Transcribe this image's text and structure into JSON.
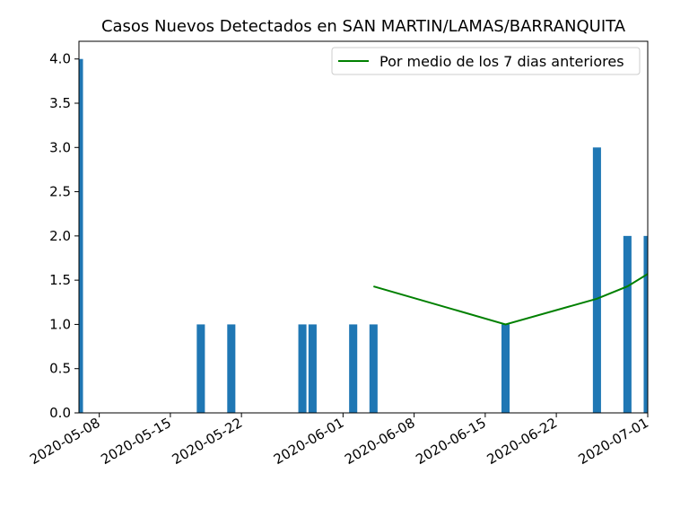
{
  "chart_data": {
    "type": "bar",
    "title": "Casos Nuevos Detectados en SAN MARTIN/LAMAS/BARRANQUITA",
    "xlabel": "",
    "ylabel": "",
    "ylim": [
      0,
      4.2
    ],
    "xlim": [
      "2020-05-06",
      "2020-07-01"
    ],
    "y_ticks": [
      "0.0",
      "0.5",
      "1.0",
      "1.5",
      "2.0",
      "2.5",
      "3.0",
      "3.5",
      "4.0"
    ],
    "x_ticks": [
      "2020-05-08",
      "2020-05-15",
      "2020-05-22",
      "2020-06-01",
      "2020-06-08",
      "2020-06-15",
      "2020-06-22",
      "2020-07-01"
    ],
    "bars": {
      "color": "#1f77b4",
      "x": [
        "2020-05-06",
        "2020-05-18",
        "2020-05-21",
        "2020-05-28",
        "2020-05-29",
        "2020-06-02",
        "2020-06-04",
        "2020-06-17",
        "2020-06-26",
        "2020-06-29",
        "2020-07-01"
      ],
      "values": [
        4,
        1,
        1,
        1,
        1,
        1,
        1,
        1,
        3,
        2,
        2
      ]
    },
    "series": [
      {
        "name": "Por medio de los 7 dias anteriores",
        "type": "line",
        "color": "#008000",
        "x": [
          "2020-06-04",
          "2020-06-17",
          "2020-06-26",
          "2020-06-29",
          "2020-07-01"
        ],
        "values": [
          1.43,
          1.0,
          1.29,
          1.43,
          1.57
        ]
      }
    ],
    "legend": {
      "placement": "top-right",
      "entries": [
        "Por medio de los 7 dias anteriores"
      ]
    },
    "grid": false
  }
}
